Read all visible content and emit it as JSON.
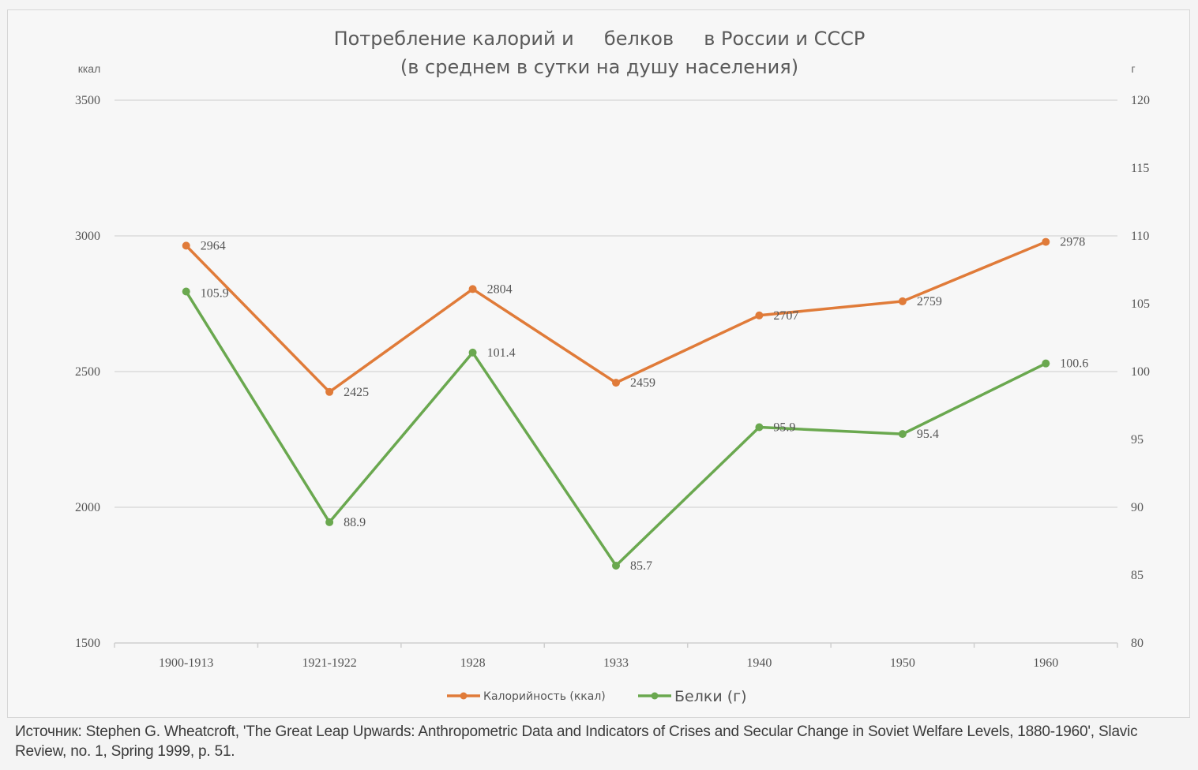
{
  "chart_data": {
    "type": "line",
    "title_lines": [
      "Потребление калорий и     белков     в России и СССР",
      "(в среднем в сутки на душу населения)"
    ],
    "y_left_label": "ккал",
    "y_right_label": "г",
    "categories": [
      "1900-1913",
      "1921-1922",
      "1928",
      "1933",
      "1940",
      "1950",
      "1960"
    ],
    "y_left_range": [
      1500,
      3500
    ],
    "y_left_ticks": [
      "1500",
      "2000",
      "2500",
      "3000",
      "3500"
    ],
    "y_right_range": [
      80,
      120
    ],
    "y_right_ticks": [
      "80",
      "85",
      "90",
      "95",
      "100",
      "105",
      "110",
      "115",
      "120"
    ],
    "grid": true,
    "legend_position": "bottom",
    "series": [
      {
        "name": "Калорийность (ккал)",
        "axis": "left",
        "color": "#e07b39",
        "values": [
          2964,
          2425,
          2804,
          2459,
          2707,
          2759,
          2978
        ],
        "labels": [
          "2964",
          "2425",
          "2804",
          "2459",
          "2707",
          "2759",
          "2978"
        ]
      },
      {
        "name": "Белки (г)",
        "axis": "right",
        "color": "#6aa84f",
        "values": [
          105.9,
          88.9,
          101.4,
          85.7,
          95.9,
          95.4,
          100.6
        ],
        "labels": [
          "105.9",
          "88.9",
          "101.4",
          "85.7",
          "95.9",
          "95.4",
          "100.6"
        ]
      }
    ]
  },
  "source": "Источник: Stephen G. Wheatcroft, 'The Great Leap Upwards: Anthropometric Data and Indicators of Crises and Secular Change in Soviet Welfare Levels, 1880-1960', Slavic Review, no. 1, Spring 1999, p. 51."
}
